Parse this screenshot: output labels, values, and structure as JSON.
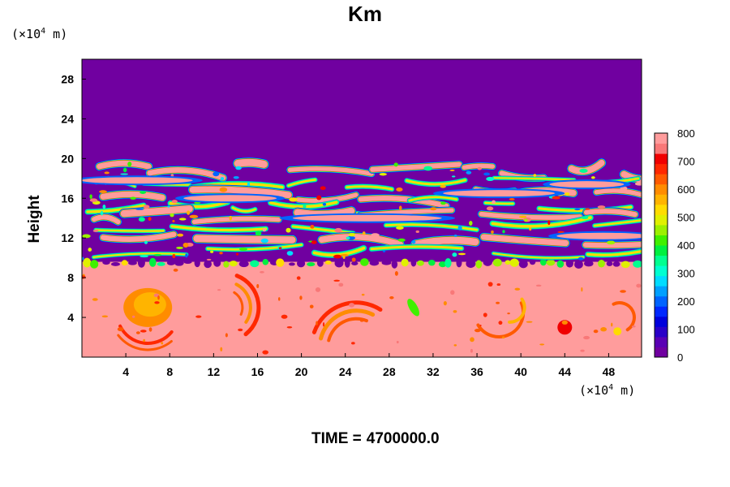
{
  "chart_data": {
    "type": "heatmap",
    "title": "Km",
    "ylabel": "Height",
    "y_unit": "(×10⁴ m)",
    "x_unit": "(×10⁴ m)",
    "x_ticks": [
      4,
      8,
      12,
      16,
      20,
      24,
      28,
      32,
      36,
      40,
      44,
      48
    ],
    "y_ticks": [
      4,
      8,
      12,
      16,
      20,
      24,
      28
    ],
    "xlim": [
      0,
      51
    ],
    "ylim": [
      0,
      30
    ],
    "colorbar": {
      "min": 0,
      "max": 800,
      "ticks": [
        0,
        100,
        200,
        300,
        400,
        500,
        600,
        700,
        800
      ],
      "colors": [
        "#7000a0",
        "#5a00b4",
        "#2a00c8",
        "#0000dc",
        "#0028ff",
        "#0064ff",
        "#00a0ff",
        "#00dcff",
        "#00ffd0",
        "#00ff90",
        "#00f040",
        "#40f000",
        "#9cf000",
        "#e0f000",
        "#ffdc00",
        "#ffb400",
        "#ff8c00",
        "#ff5a00",
        "#ff2800",
        "#f00000",
        "#f87878",
        "#ff9c9c"
      ]
    },
    "regions": [
      {
        "y_range": [
          20,
          30
        ],
        "value": 0
      },
      {
        "y_range": [
          9.5,
          20
        ],
        "value": "mixed 0-800 (filamentary)"
      },
      {
        "y_range": [
          0,
          9.5
        ],
        "value": "~800 with eddies 500-750"
      }
    ]
  },
  "time": {
    "label": "TIME =",
    "value": "4700000.0"
  }
}
